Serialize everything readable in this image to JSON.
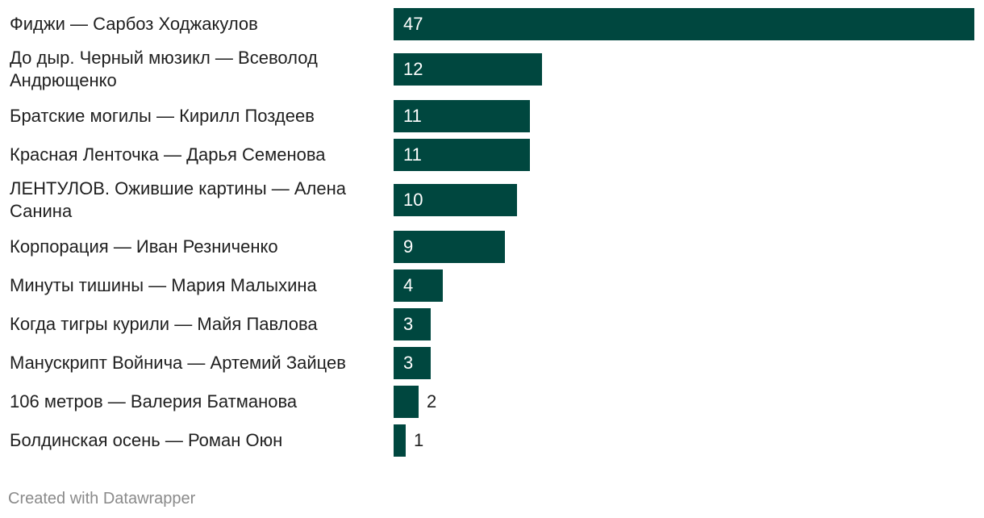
{
  "chart_data": {
    "type": "bar",
    "orientation": "horizontal",
    "categories": [
      "Фиджи — Сарбоз Ходжакулов",
      "До дыр. Черный мюзикл — Всеволод Андрющенко",
      "Братские могилы — Кирилл Поздеев",
      "Красная Ленточка — Дарья Семенова",
      "ЛЕНТУЛОВ. Ожившие картины — Алена Санина",
      "Корпорация — Иван Резниченко",
      "Минуты тишины — Мария Малыхина",
      "Когда тигры курили — Майя Павлова",
      "Манускрипт Войнича — Артемий Зайцев",
      "106 метров — Валерия Батманова",
      "Болдинская осень — Роман Оюн"
    ],
    "values": [
      47,
      12,
      11,
      11,
      10,
      9,
      4,
      3,
      3,
      2,
      1
    ],
    "xlim": [
      0,
      47
    ],
    "bar_color": "#00473f",
    "grid": false,
    "legend": "none",
    "title": "",
    "xlabel": "",
    "ylabel": ""
  },
  "footer": {
    "credit": "Created with Datawrapper"
  }
}
